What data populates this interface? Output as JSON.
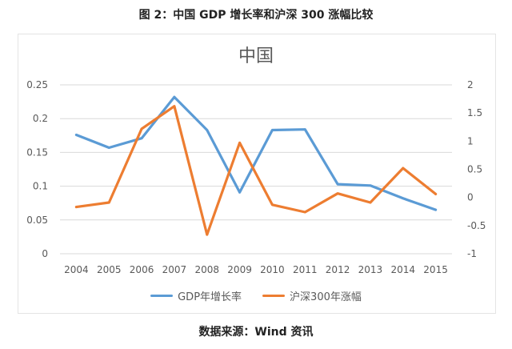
{
  "figure": {
    "caption": "图 2：中国 GDP 增长率和沪深 300 涨幅比较",
    "source": "数据来源：Wind 资讯"
  },
  "chart_data": {
    "type": "line",
    "title": "中国",
    "categories": [
      "2004",
      "2005",
      "2006",
      "2007",
      "2008",
      "2009",
      "2010",
      "2011",
      "2012",
      "2013",
      "2014",
      "2015"
    ],
    "series": [
      {
        "name": "GDP年增长率",
        "axis": "left",
        "color": "#5B9BD5",
        "values": [
          0.176,
          0.157,
          0.171,
          0.232,
          0.183,
          0.091,
          0.183,
          0.184,
          0.103,
          0.101,
          0.082,
          0.065
        ]
      },
      {
        "name": "沪深300年涨幅",
        "axis": "right",
        "color": "#ED7D31",
        "values": [
          -0.17,
          -0.09,
          1.22,
          1.62,
          -0.66,
          0.97,
          -0.13,
          -0.26,
          0.07,
          -0.09,
          0.52,
          0.06
        ]
      }
    ],
    "y_left": {
      "ylim": [
        0,
        0.25
      ],
      "ticks": [
        "0.25",
        "0.2",
        "0.15",
        "0.1",
        "0.05",
        "0"
      ]
    },
    "y_right": {
      "ylim": [
        -1,
        2
      ],
      "ticks": [
        "2",
        "1.5",
        "1",
        "0.5",
        "0",
        "-0.5",
        "-1"
      ]
    },
    "grid": true,
    "legend": "bottom"
  }
}
